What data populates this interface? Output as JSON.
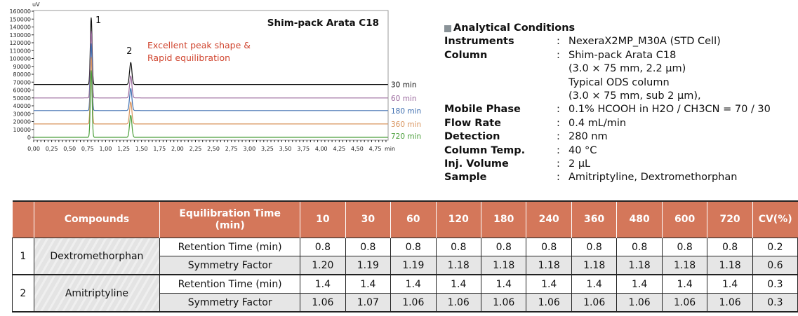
{
  "chart_data": {
    "type": "line",
    "title": "Shim-pack Arata C18",
    "annotation": [
      "Excellent peak shape &",
      "Rapid equilibration"
    ],
    "peak_labels": [
      {
        "label": "1",
        "x": 0.8
      },
      {
        "label": "2",
        "x": 1.35
      }
    ],
    "ylabel": "uV",
    "xlabel": "min",
    "xlim": [
      0,
      4.93
    ],
    "ylim": [
      -3000,
      160000
    ],
    "xticks": [
      "0,00",
      "0,25",
      "0,50",
      "0,75",
      "1,00",
      "1,25",
      "1,50",
      "1,75",
      "2,00",
      "2,25",
      "2,50",
      "2,75",
      "3,00",
      "3,25",
      "3,50",
      "3,75",
      "4,00",
      "4,25",
      "4,50",
      "4,75"
    ],
    "yticks": [
      0,
      10000,
      20000,
      30000,
      40000,
      50000,
      60000,
      70000,
      80000,
      90000,
      100000,
      110000,
      120000,
      130000,
      140000,
      150000,
      160000
    ],
    "series": [
      {
        "name": "30 min",
        "color": "#111111",
        "baseline": 67000,
        "peaks": [
          {
            "x": 0.8,
            "height": 85000
          },
          {
            "x": 1.35,
            "height": 28000
          }
        ]
      },
      {
        "name": "60 min",
        "color": "#9b6a9e",
        "baseline": 50000,
        "peaks": [
          {
            "x": 0.8,
            "height": 85000
          },
          {
            "x": 1.35,
            "height": 28000
          }
        ]
      },
      {
        "name": "180 min",
        "color": "#3f6fb0",
        "baseline": 34000,
        "peaks": [
          {
            "x": 0.8,
            "height": 85000
          },
          {
            "x": 1.35,
            "height": 28000
          }
        ]
      },
      {
        "name": "360 min",
        "color": "#d9955f",
        "baseline": 17000,
        "peaks": [
          {
            "x": 0.8,
            "height": 85000
          },
          {
            "x": 1.35,
            "height": 28000
          }
        ]
      },
      {
        "name": "720 min",
        "color": "#4a9e3a",
        "baseline": 0,
        "peaks": [
          {
            "x": 0.8,
            "height": 85000
          },
          {
            "x": 1.35,
            "height": 28000
          }
        ]
      }
    ]
  },
  "conditions": {
    "heading": "Analytical Conditions",
    "rows": [
      {
        "label": "Instruments",
        "value": "NexeraX2MP_M30A (STD Cell)"
      },
      {
        "label": "Column",
        "value": "Shim-pack Arata C18"
      },
      {
        "label": "",
        "value": "(3.0 × 75 mm, 2.2 µm)"
      },
      {
        "label": "",
        "value": "Typical ODS column"
      },
      {
        "label": "",
        "value": "(3.0 × 75 mm, sub 2 µm),"
      },
      {
        "label": "Mobile Phase",
        "value": "0.1% HCOOH in H2O / CH3CN = 70 / 30"
      },
      {
        "label": "Flow Rate",
        "value": "0.4 mL/min"
      },
      {
        "label": "Detection",
        "value": "280 nm"
      },
      {
        "label": "Column Temp.",
        "value": "40 °C"
      },
      {
        "label": "Inj. Volume",
        "value": "2 µL"
      },
      {
        "label": "Sample",
        "value": "Amitriptyline, Dextromethorphan"
      }
    ]
  },
  "table": {
    "headers": [
      "",
      "Compounds",
      "Equilibration Time (min)",
      "10",
      "30",
      "60",
      "120",
      "180",
      "240",
      "360",
      "480",
      "600",
      "720",
      "CV(%)"
    ],
    "compounds": [
      {
        "no": "1",
        "name": "Dextromethorphan",
        "rows": [
          {
            "metric": "Retention Time (min)",
            "values": [
              "0.8",
              "0.8",
              "0.8",
              "0.8",
              "0.8",
              "0.8",
              "0.8",
              "0.8",
              "0.8",
              "0.8",
              "0.2"
            ]
          },
          {
            "metric": "Symmetry Factor",
            "values": [
              "1.20",
              "1.19",
              "1.19",
              "1.18",
              "1.18",
              "1.18",
              "1.18",
              "1.18",
              "1.18",
              "1.18",
              "0.6"
            ]
          }
        ]
      },
      {
        "no": "2",
        "name": "Amitriptyline",
        "rows": [
          {
            "metric": "Retention Time (min)",
            "values": [
              "1.4",
              "1.4",
              "1.4",
              "1.4",
              "1.4",
              "1.4",
              "1.4",
              "1.4",
              "1.4",
              "1.4",
              "0.3"
            ]
          },
          {
            "metric": "Symmetry Factor",
            "values": [
              "1.06",
              "1.07",
              "1.06",
              "1.06",
              "1.06",
              "1.06",
              "1.06",
              "1.06",
              "1.06",
              "1.06",
              "0.3"
            ]
          }
        ]
      }
    ]
  }
}
